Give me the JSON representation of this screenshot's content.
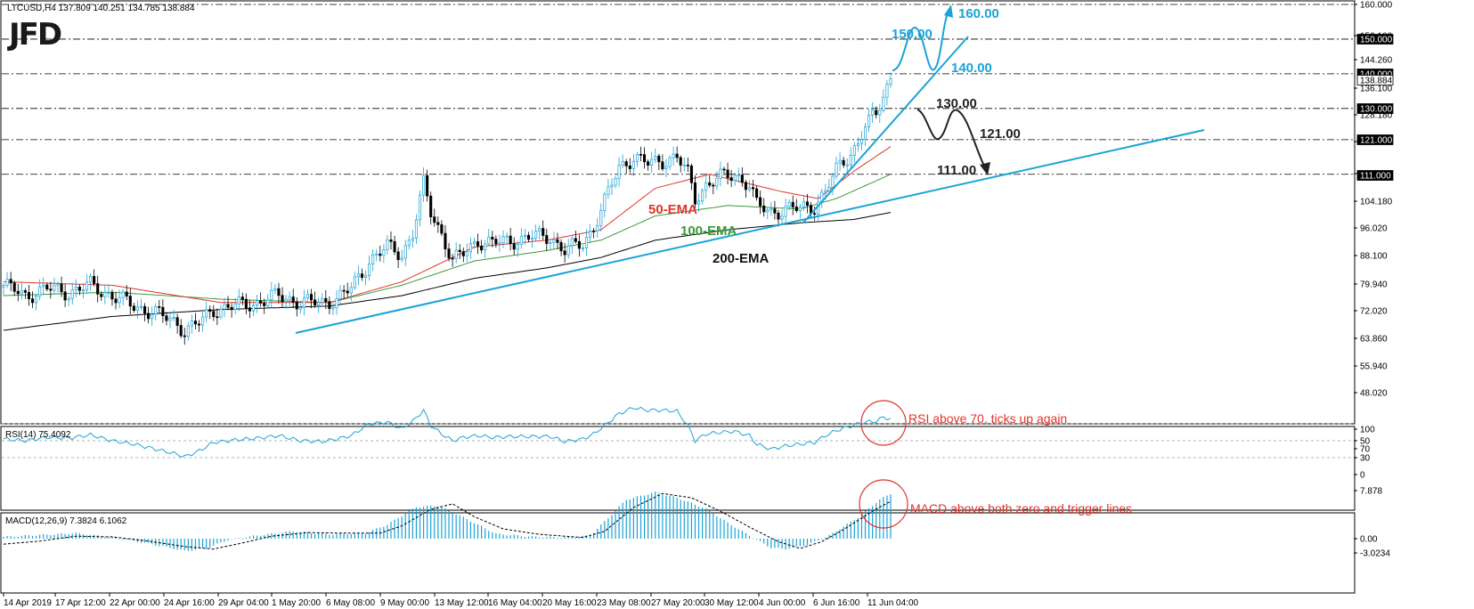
{
  "header": {
    "main": "LTCUSD,H4  137.809 140.251 134.785 138.884",
    "rsi": "RSI(14) 75.4092",
    "macd": "MACD(12,26,9) 7.3824 6.1062",
    "logo": "JFD"
  },
  "colors": {
    "bull": "#1aa3d6",
    "bear": "#000000",
    "ema50": "#e0342b",
    "ema100": "#3a9a3a",
    "ema200": "#000000",
    "annotation_blue": "#1aa3d6",
    "annotation_black": "#222222",
    "note": "#e0342b"
  },
  "chart_data": [
    {
      "type": "candlestick",
      "instrument": "LTCUSD",
      "timeframe": "H4",
      "ylim": [
        48.02,
        161.5
      ],
      "y_ticks": [
        "160.000",
        "152.100",
        "144.260",
        "136.100",
        "128.180",
        "120.340",
        "111.000",
        "104.180",
        "96.020",
        "88.100",
        "79.940",
        "72.020",
        "63.860",
        "55.940",
        "48.020"
      ],
      "price_markers": [
        "150.000",
        "140.000",
        "138.884",
        "130.000",
        "121.000",
        "111.000"
      ],
      "x_ticks": [
        "14 Apr 2019",
        "17 Apr 12:00",
        "22 Apr 00:00",
        "24 Apr 16:00",
        "29 Apr 04:00",
        "1 May 20:00",
        "6 May 08:00",
        "9 May 00:00",
        "13 May 12:00",
        "16 May 04:00",
        "20 May 16:00",
        "23 May 08:00",
        "27 May 20:00",
        "30 May 12:00",
        "4 Jun 00:00",
        "6 Jun 16:00",
        "11 Jun 04:00"
      ],
      "anchors": [
        [
          0,
          79
        ],
        [
          6,
          76
        ],
        [
          12,
          78
        ],
        [
          18,
          77
        ],
        [
          24,
          79
        ],
        [
          30,
          76
        ],
        [
          36,
          73
        ],
        [
          42,
          71
        ],
        [
          48,
          68
        ],
        [
          50,
          66
        ],
        [
          54,
          68
        ],
        [
          58,
          72
        ],
        [
          64,
          73
        ],
        [
          70,
          74
        ],
        [
          76,
          76
        ],
        [
          82,
          74
        ],
        [
          88,
          74
        ],
        [
          92,
          75
        ],
        [
          96,
          78
        ],
        [
          101,
          86
        ],
        [
          106,
          90
        ],
        [
          110,
          88
        ],
        [
          113,
          94
        ],
        [
          116,
          108
        ],
        [
          118,
          100
        ],
        [
          121,
          94
        ],
        [
          124,
          86
        ],
        [
          127,
          88
        ],
        [
          131,
          92
        ],
        [
          135,
          91
        ],
        [
          141,
          92
        ],
        [
          146,
          93
        ],
        [
          151,
          93
        ],
        [
          155,
          89
        ],
        [
          160,
          91
        ],
        [
          163,
          96
        ],
        [
          166,
          103
        ],
        [
          170,
          113
        ],
        [
          174,
          116
        ],
        [
          178,
          114
        ],
        [
          182,
          115
        ],
        [
          186,
          116
        ],
        [
          189,
          111
        ],
        [
          191,
          104
        ],
        [
          194,
          108
        ],
        [
          198,
          110
        ],
        [
          202,
          111
        ],
        [
          206,
          108
        ],
        [
          208,
          102
        ],
        [
          212,
          100
        ],
        [
          216,
          101
        ],
        [
          220,
          101
        ],
        [
          224,
          102
        ],
        [
          227,
          106
        ],
        [
          230,
          112
        ],
        [
          233,
          116
        ],
        [
          236,
          120
        ],
        [
          238,
          125
        ],
        [
          241,
          128
        ],
        [
          243,
          134
        ],
        [
          245,
          138.9
        ]
      ],
      "ema50": [
        [
          0,
          80
        ],
        [
          30,
          79
        ],
        [
          60,
          74
        ],
        [
          90,
          74
        ],
        [
          110,
          80
        ],
        [
          130,
          90
        ],
        [
          150,
          92
        ],
        [
          165,
          95
        ],
        [
          180,
          107
        ],
        [
          195,
          111
        ],
        [
          215,
          106
        ],
        [
          225,
          104
        ],
        [
          235,
          112
        ],
        [
          245,
          119
        ]
      ],
      "ema100": [
        [
          0,
          76
        ],
        [
          30,
          77
        ],
        [
          60,
          75
        ],
        [
          90,
          74
        ],
        [
          110,
          79
        ],
        [
          130,
          86
        ],
        [
          150,
          89
        ],
        [
          165,
          92
        ],
        [
          180,
          99
        ],
        [
          200,
          102
        ],
        [
          220,
          101
        ],
        [
          230,
          104
        ],
        [
          245,
          111
        ]
      ],
      "ema200": [
        [
          0,
          66
        ],
        [
          30,
          70
        ],
        [
          60,
          72
        ],
        [
          90,
          73
        ],
        [
          110,
          76
        ],
        [
          130,
          81
        ],
        [
          150,
          84
        ],
        [
          165,
          87
        ],
        [
          180,
          92
        ],
        [
          200,
          95
        ],
        [
          220,
          97
        ],
        [
          235,
          98
        ],
        [
          245,
          100
        ]
      ],
      "labels": {
        "ema50": "50-EMA",
        "ema100": "100-EMA",
        "ema200": "200-EMA"
      },
      "annotations": [
        "160.00",
        "150.00",
        "140.00",
        "130.00",
        "121.00",
        "111.00"
      ]
    },
    {
      "type": "line",
      "name": "RSI(14)",
      "ylim": [
        0,
        100
      ],
      "y_ticks": [
        "100",
        "70",
        "50",
        "30",
        "0"
      ],
      "levels": [
        70,
        50,
        30
      ],
      "points": [
        [
          0,
          52
        ],
        [
          6,
          50
        ],
        [
          12,
          54
        ],
        [
          18,
          53
        ],
        [
          24,
          57
        ],
        [
          30,
          50
        ],
        [
          36,
          46
        ],
        [
          42,
          40
        ],
        [
          48,
          34
        ],
        [
          50,
          31
        ],
        [
          54,
          38
        ],
        [
          58,
          48
        ],
        [
          64,
          51
        ],
        [
          70,
          53
        ],
        [
          76,
          56
        ],
        [
          82,
          50
        ],
        [
          88,
          49
        ],
        [
          92,
          52
        ],
        [
          96,
          56
        ],
        [
          101,
          70
        ],
        [
          106,
          72
        ],
        [
          110,
          64
        ],
        [
          113,
          73
        ],
        [
          116,
          86
        ],
        [
          118,
          68
        ],
        [
          121,
          58
        ],
        [
          124,
          50
        ],
        [
          127,
          54
        ],
        [
          131,
          56
        ],
        [
          135,
          54
        ],
        [
          141,
          55
        ],
        [
          146,
          55
        ],
        [
          151,
          55
        ],
        [
          155,
          49
        ],
        [
          160,
          52
        ],
        [
          163,
          58
        ],
        [
          166,
          68
        ],
        [
          170,
          82
        ],
        [
          174,
          89
        ],
        [
          178,
          86
        ],
        [
          182,
          86
        ],
        [
          186,
          85
        ],
        [
          189,
          68
        ],
        [
          191,
          50
        ],
        [
          194,
          58
        ],
        [
          198,
          60
        ],
        [
          202,
          61
        ],
        [
          206,
          56
        ],
        [
          208,
          46
        ],
        [
          212,
          40
        ],
        [
          216,
          44
        ],
        [
          220,
          46
        ],
        [
          224,
          48
        ],
        [
          227,
          56
        ],
        [
          230,
          62
        ],
        [
          233,
          66
        ],
        [
          236,
          70
        ],
        [
          238,
          72
        ],
        [
          241,
          73
        ],
        [
          243,
          78
        ],
        [
          245,
          75.4
        ]
      ],
      "note": "RSI above 70, ticks up again"
    },
    {
      "type": "bar",
      "name": "MACD(12,26,9)",
      "ylim": [
        -3.0234,
        7.878
      ],
      "y_ticks": [
        "7.878",
        "0.00",
        "-3.0234"
      ],
      "histogram": [
        [
          0,
          0.3
        ],
        [
          10,
          0.6
        ],
        [
          20,
          0.9
        ],
        [
          30,
          0.2
        ],
        [
          40,
          -0.8
        ],
        [
          50,
          -2.0
        ],
        [
          56,
          -1.6
        ],
        [
          62,
          -0.2
        ],
        [
          70,
          0.5
        ],
        [
          80,
          1.2
        ],
        [
          90,
          0.7
        ],
        [
          100,
          0.9
        ],
        [
          106,
          2.3
        ],
        [
          114,
          5.2
        ],
        [
          120,
          5.4
        ],
        [
          128,
          3.2
        ],
        [
          136,
          0.8
        ],
        [
          146,
          0.3
        ],
        [
          156,
          0.2
        ],
        [
          162,
          0.5
        ],
        [
          166,
          2.8
        ],
        [
          172,
          6.4
        ],
        [
          180,
          7.6
        ],
        [
          186,
          6.7
        ],
        [
          194,
          4.9
        ],
        [
          200,
          2.6
        ],
        [
          206,
          0.5
        ],
        [
          212,
          -1.5
        ],
        [
          216,
          -1.7
        ],
        [
          222,
          -1.0
        ],
        [
          228,
          0.5
        ],
        [
          236,
          3.5
        ],
        [
          242,
          6.4
        ],
        [
          245,
          7.38
        ]
      ],
      "signal": [
        [
          0,
          -0.9
        ],
        [
          10,
          -0.4
        ],
        [
          20,
          0.4
        ],
        [
          30,
          0.3
        ],
        [
          40,
          -0.4
        ],
        [
          50,
          -1.3
        ],
        [
          58,
          -1.7
        ],
        [
          66,
          -0.7
        ],
        [
          74,
          0.4
        ],
        [
          84,
          1.0
        ],
        [
          94,
          0.9
        ],
        [
          104,
          0.9
        ],
        [
          110,
          2.1
        ],
        [
          118,
          4.8
        ],
        [
          124,
          5.7
        ],
        [
          130,
          3.6
        ],
        [
          138,
          1.6
        ],
        [
          148,
          0.7
        ],
        [
          160,
          0.2
        ],
        [
          166,
          1.2
        ],
        [
          174,
          5.1
        ],
        [
          182,
          7.4
        ],
        [
          190,
          6.7
        ],
        [
          198,
          4.5
        ],
        [
          206,
          1.9
        ],
        [
          214,
          -0.5
        ],
        [
          220,
          -1.6
        ],
        [
          226,
          -0.5
        ],
        [
          232,
          1.5
        ],
        [
          240,
          4.5
        ],
        [
          245,
          6.11
        ]
      ],
      "note": "MACD above both zero and trigger lines"
    }
  ]
}
